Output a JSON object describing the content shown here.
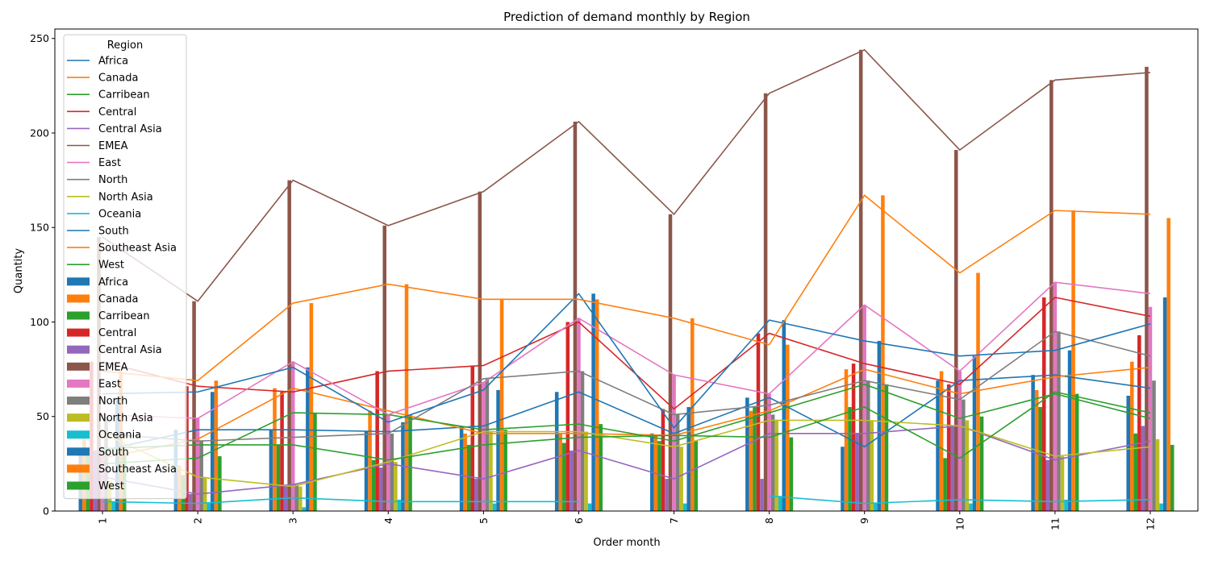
{
  "chart_data": {
    "type": "bar",
    "title": "Prediction of demand monthly by Region",
    "xlabel": "Order month",
    "ylabel": "Quantity",
    "categories": [
      "1",
      "2",
      "3",
      "4",
      "5",
      "6",
      "7",
      "8",
      "9",
      "10",
      "11",
      "12"
    ],
    "ylim": [
      0,
      255
    ],
    "yticks": [
      0,
      50,
      100,
      150,
      200,
      250
    ],
    "grid": false,
    "legend_title": "Region",
    "legend_position": "top-left",
    "series": [
      {
        "name": "Africa",
        "color": "#1f77b4",
        "values": [
          31,
          43,
          43,
          42,
          45,
          63,
          41,
          60,
          34,
          69,
          72,
          61
        ]
      },
      {
        "name": "Canada",
        "color": "#ff7f0e",
        "values": [
          38,
          24,
          65,
          53,
          41,
          41,
          40,
          53,
          75,
          74,
          64,
          79
        ]
      },
      {
        "name": "Carribean",
        "color": "#2ca02c",
        "values": [
          30,
          19,
          35,
          27,
          35,
          36,
          37,
          55,
          55,
          28,
          55,
          41
        ]
      },
      {
        "name": "Central",
        "color": "#d62728",
        "values": [
          79,
          66,
          63,
          74,
          77,
          100,
          54,
          94,
          78,
          67,
          113,
          93
        ]
      },
      {
        "name": "Central Asia",
        "color": "#9467bd",
        "values": [
          32,
          9,
          14,
          23,
          17,
          32,
          17,
          17,
          41,
          45,
          27,
          45
        ]
      },
      {
        "name": "EMEA",
        "color": "#8c564b",
        "values": [
          145,
          111,
          175,
          151,
          169,
          206,
          157,
          221,
          244,
          191,
          228,
          235
        ]
      },
      {
        "name": "East",
        "color": "#e377c2",
        "values": [
          32,
          49,
          79,
          51,
          68,
          102,
          72,
          62,
          109,
          74,
          121,
          108
        ]
      },
      {
        "name": "North",
        "color": "#7f7f7f",
        "values": [
          50,
          37,
          14,
          41,
          70,
          74,
          51,
          51,
          69,
          59,
          95,
          69
        ]
      },
      {
        "name": "North Asia",
        "color": "#bcbd22",
        "values": [
          16,
          18,
          13,
          26,
          42,
          42,
          34,
          48,
          48,
          48,
          29,
          38
        ]
      },
      {
        "name": "Oceania",
        "color": "#17becf",
        "values": [
          5,
          4,
          2,
          6,
          4,
          4,
          4,
          8,
          4,
          4,
          6,
          4
        ]
      },
      {
        "name": "South",
        "color": "#1f77b4",
        "values": [
          60,
          63,
          76,
          47,
          64,
          115,
          55,
          101,
          90,
          82,
          85,
          113
        ]
      },
      {
        "name": "Southeast Asia",
        "color": "#ff7f0e",
        "values": [
          74,
          69,
          110,
          120,
          112,
          112,
          102,
          88,
          167,
          126,
          159,
          155
        ]
      },
      {
        "name": "West",
        "color": "#2ca02c",
        "values": [
          30,
          29,
          52,
          51,
          43,
          46,
          37,
          39,
          67,
          50,
          62,
          35
        ]
      }
    ],
    "prediction_lines": [
      {
        "name": "Africa",
        "color": "#1f77b4",
        "values": [
          null,
          32,
          43,
          43,
          42,
          45,
          63,
          41,
          60,
          34,
          69,
          72,
          65
        ]
      },
      {
        "name": "Canada",
        "color": "#ff7f0e",
        "values": [
          null,
          28,
          38,
          65,
          53,
          41,
          41,
          40,
          53,
          75,
          62,
          71,
          76
        ]
      },
      {
        "name": "Carribean",
        "color": "#2ca02c",
        "values": [
          null,
          25,
          28,
          52,
          51,
          43,
          46,
          37,
          52,
          67,
          49,
          62,
          49
        ]
      },
      {
        "name": "Central",
        "color": "#d62728",
        "values": [
          null,
          79,
          66,
          63,
          74,
          77,
          100,
          54,
          94,
          78,
          67,
          113,
          103
        ]
      },
      {
        "name": "Central Asia",
        "color": "#9467bd",
        "values": [
          null,
          18,
          9,
          14,
          25,
          17,
          32,
          17,
          41,
          41,
          45,
          27,
          37
        ]
      },
      {
        "name": "EMEA",
        "color": "#8c564b",
        "values": [
          null,
          145,
          111,
          175,
          151,
          169,
          206,
          157,
          221,
          244,
          191,
          228,
          232
        ]
      },
      {
        "name": "East",
        "color": "#e377c2",
        "values": [
          null,
          51,
          49,
          79,
          51,
          68,
          102,
          72,
          62,
          109,
          74,
          121,
          115
        ]
      },
      {
        "name": "North",
        "color": "#7f7f7f",
        "values": [
          null,
          41,
          37,
          39,
          41,
          70,
          74,
          51,
          56,
          69,
          59,
          95,
          82
        ]
      },
      {
        "name": "North Asia",
        "color": "#bcbd22",
        "values": [
          null,
          41,
          18,
          13,
          26,
          42,
          42,
          34,
          48,
          48,
          45,
          29,
          34
        ]
      },
      {
        "name": "Oceania",
        "color": "#17becf",
        "values": [
          null,
          5,
          4,
          7,
          5,
          5,
          5,
          null,
          8,
          4,
          6,
          5,
          6
        ]
      },
      {
        "name": "South",
        "color": "#1f77b4",
        "values": [
          null,
          62,
          63,
          76,
          47,
          64,
          115,
          44,
          101,
          90,
          82,
          85,
          99
        ]
      },
      {
        "name": "Southeast Asia",
        "color": "#ff7f0e",
        "values": [
          null,
          74,
          69,
          110,
          120,
          112,
          112,
          102,
          88,
          167,
          126,
          159,
          157
        ]
      },
      {
        "name": "West",
        "color": "#2ca02c",
        "values": [
          null,
          33,
          35,
          35,
          27,
          35,
          39,
          40,
          39,
          55,
          28,
          63,
          52
        ]
      }
    ]
  }
}
